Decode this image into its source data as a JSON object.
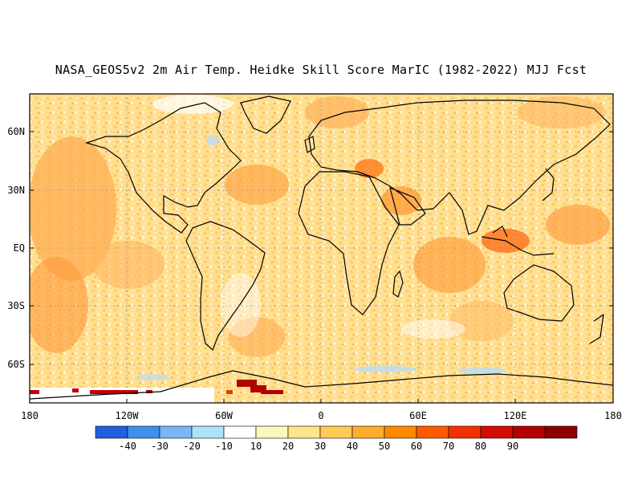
{
  "title": "NASA_GEOS5v2 2m Air Temp. Heidke Skill Score MarIC (1982-2022) MJJ Fcst",
  "map": {
    "lat_ticks": [
      "60N",
      "30N",
      "EQ",
      "30S",
      "60S"
    ],
    "lon_ticks": [
      "180",
      "120W",
      "60W",
      "0",
      "60E",
      "120E",
      "180"
    ]
  },
  "colorbar": {
    "colors": [
      "#1f5fe0",
      "#3f8ff0",
      "#78b6f5",
      "#aee2fb",
      "#ffffff",
      "#fff6bd",
      "#ffe48a",
      "#ffcb58",
      "#ffac2c",
      "#ff8a00",
      "#ff5a00",
      "#f23000",
      "#d40c00",
      "#b00000",
      "#8c0000"
    ],
    "labels": [
      "-40",
      "-30",
      "-20",
      "-10",
      "10",
      "20",
      "30",
      "40",
      "50",
      "60",
      "70",
      "80",
      "90"
    ]
  }
}
